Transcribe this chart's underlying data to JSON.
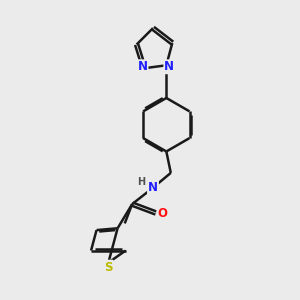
{
  "background_color": "#ebebeb",
  "bond_color": "#1a1a1a",
  "bond_width": 1.8,
  "dbo": 0.055,
  "atom_colors": {
    "N": "#2020ff",
    "O": "#ff1010",
    "S": "#bbbb00",
    "H": "#505050"
  },
  "fs": 8.5,
  "fig_width": 3.0,
  "fig_height": 3.0,
  "dpi": 100
}
